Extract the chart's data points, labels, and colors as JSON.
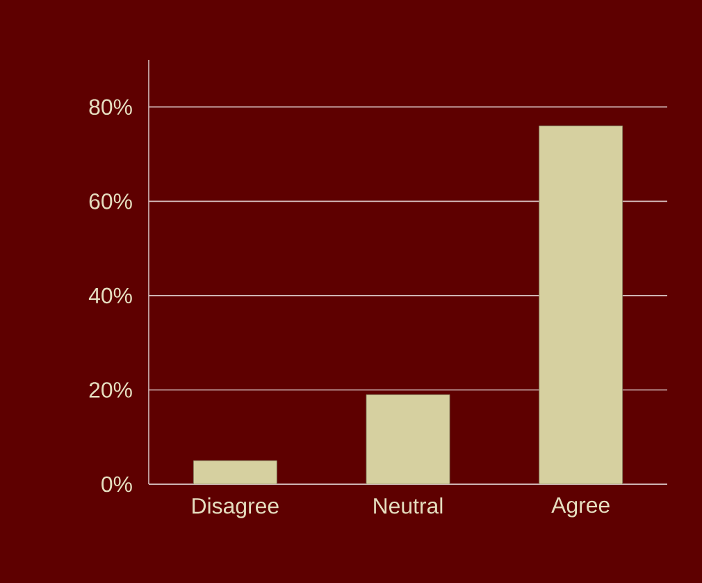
{
  "chart_data": {
    "type": "bar",
    "categories": [
      "Disagree",
      "Neutral",
      "Agree"
    ],
    "values": [
      5,
      19,
      76
    ],
    "color": "#d6d0a0",
    "ylim": [
      0,
      90
    ],
    "yticks": [
      {
        "value": 0,
        "label": "0%"
      },
      {
        "value": 20,
        "label": "20%"
      },
      {
        "value": 40,
        "label": "40%"
      },
      {
        "value": 60,
        "label": "60%"
      },
      {
        "value": 80,
        "label": "80%"
      }
    ],
    "grid": "y"
  }
}
